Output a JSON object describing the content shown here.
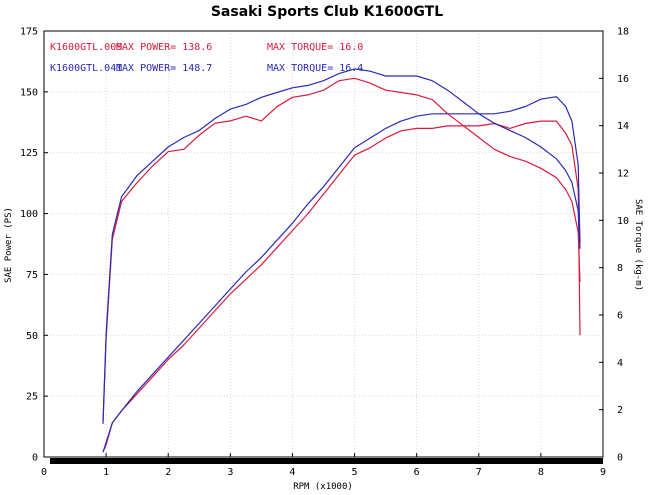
{
  "chart_data": {
    "type": "line",
    "title": "Sasaki Sports Club K1600GTL",
    "xlabel": "RPM (x1000)",
    "ylabel_left": "SAE Power (PS)",
    "ylabel_right": "SAE Torque (kg-m)",
    "xlim": [
      0,
      9
    ],
    "ylim_left": [
      0,
      175
    ],
    "ylim_right": [
      0,
      18
    ],
    "x_ticks": [
      "0",
      "1",
      "2",
      "3",
      "4",
      "5",
      "6",
      "7",
      "8",
      "9"
    ],
    "y_left_ticks": [
      "0",
      "25",
      "50",
      "75",
      "100",
      "125",
      "150",
      "175"
    ],
    "y_right_ticks": [
      "0",
      "2",
      "4",
      "6",
      "8",
      "10",
      "12",
      "14",
      "16",
      "18"
    ],
    "colors": {
      "run1": "#d81b3c",
      "run2": "#2a2ab8"
    },
    "legend": [
      {
        "run": "K1600GTL.009",
        "power_label": "MAX POWER= 138.6",
        "torque_label": "MAX TORQUE= 16.0",
        "color": "#d81b3c"
      },
      {
        "run": "K1600GTL.041",
        "power_label": "MAX POWER= 148.7",
        "torque_label": "MAX TORQUE= 16.4",
        "color": "#2a2ab8"
      }
    ],
    "series": [
      {
        "name": "K1600GTL.009 Power",
        "axis": "left",
        "color": "#d81b3c",
        "x": [
          0.95,
          1.0,
          1.1,
          1.25,
          1.5,
          1.75,
          2.0,
          2.25,
          2.5,
          2.75,
          3.0,
          3.25,
          3.5,
          3.75,
          4.0,
          4.25,
          4.5,
          4.75,
          5.0,
          5.25,
          5.5,
          5.75,
          6.0,
          6.25,
          6.5,
          6.75,
          7.0,
          7.25,
          7.5,
          7.75,
          8.0,
          8.25,
          8.4,
          8.5,
          8.6,
          8.63
        ],
        "values": [
          2,
          5,
          14,
          19,
          26,
          33,
          40,
          46,
          53,
          60,
          67,
          73,
          79,
          86,
          93,
          100,
          108,
          116,
          124,
          127,
          131,
          134,
          135,
          135,
          136,
          136,
          136,
          137,
          135,
          137,
          138,
          138,
          133,
          128,
          110,
          50
        ]
      },
      {
        "name": "K1600GTL.041 Power",
        "axis": "left",
        "color": "#2a2ab8",
        "x": [
          0.95,
          1.0,
          1.1,
          1.25,
          1.5,
          1.75,
          2.0,
          2.25,
          2.5,
          2.75,
          3.0,
          3.25,
          3.5,
          3.75,
          4.0,
          4.25,
          4.5,
          4.75,
          5.0,
          5.25,
          5.5,
          5.75,
          6.0,
          6.25,
          6.5,
          6.75,
          7.0,
          7.25,
          7.5,
          7.75,
          8.0,
          8.25,
          8.4,
          8.5,
          8.6,
          8.63
        ],
        "values": [
          2,
          6,
          14,
          19,
          27,
          34,
          41,
          48,
          55,
          62,
          69,
          76,
          82,
          89,
          96,
          104,
          111,
          119,
          127,
          131,
          135,
          138,
          140,
          141,
          141,
          141,
          141,
          141,
          142,
          144,
          147,
          148,
          144,
          138,
          120,
          88
        ]
      },
      {
        "name": "K1600GTL.009 Torque",
        "axis": "right",
        "color": "#d81b3c",
        "x": [
          0.95,
          1.0,
          1.1,
          1.25,
          1.5,
          1.75,
          2.0,
          2.25,
          2.5,
          2.75,
          3.0,
          3.25,
          3.5,
          3.75,
          4.0,
          4.25,
          4.5,
          4.75,
          5.0,
          5.25,
          5.5,
          5.75,
          6.0,
          6.25,
          6.5,
          6.75,
          7.0,
          7.25,
          7.5,
          7.75,
          8.0,
          8.25,
          8.4,
          8.5,
          8.6,
          8.63
        ],
        "values": [
          1.5,
          5.0,
          9.2,
          10.8,
          11.6,
          12.3,
          12.9,
          13.0,
          13.6,
          14.1,
          14.2,
          14.4,
          14.2,
          14.8,
          15.2,
          15.3,
          15.5,
          15.9,
          16.0,
          15.8,
          15.5,
          15.4,
          15.3,
          15.1,
          14.5,
          14.0,
          13.5,
          13.0,
          12.7,
          12.5,
          12.2,
          11.8,
          11.3,
          10.8,
          9.5,
          7.4
        ]
      },
      {
        "name": "K1600GTL.041 Torque",
        "axis": "right",
        "color": "#2a2ab8",
        "x": [
          0.95,
          1.0,
          1.1,
          1.25,
          1.5,
          1.75,
          2.0,
          2.25,
          2.5,
          2.75,
          3.0,
          3.25,
          3.5,
          3.75,
          4.0,
          4.25,
          4.5,
          4.75,
          5.0,
          5.25,
          5.5,
          5.75,
          6.0,
          6.25,
          6.5,
          6.75,
          7.0,
          7.25,
          7.5,
          7.75,
          8.0,
          8.25,
          8.4,
          8.5,
          8.6,
          8.63
        ],
        "values": [
          1.4,
          5.2,
          9.4,
          11.0,
          11.9,
          12.5,
          13.1,
          13.5,
          13.8,
          14.3,
          14.7,
          14.9,
          15.2,
          15.4,
          15.6,
          15.7,
          15.9,
          16.2,
          16.4,
          16.3,
          16.1,
          16.1,
          16.1,
          15.9,
          15.5,
          15.0,
          14.5,
          14.1,
          13.8,
          13.5,
          13.1,
          12.6,
          12.1,
          11.6,
          10.4,
          8.8
        ]
      }
    ]
  }
}
